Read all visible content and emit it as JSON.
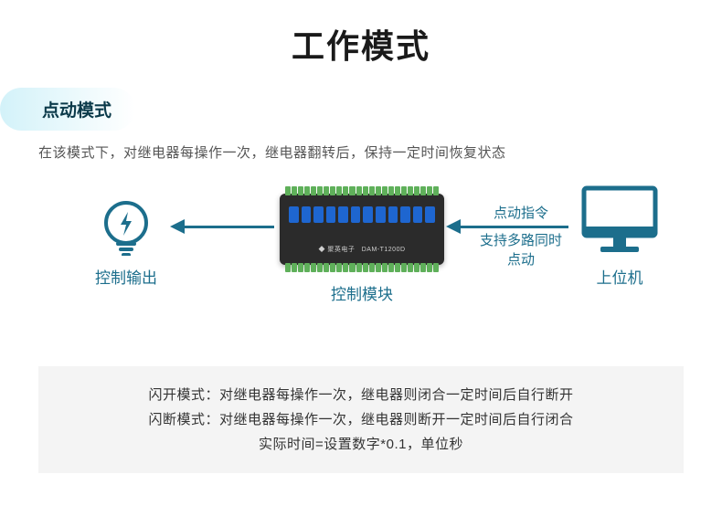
{
  "colors": {
    "accent": "#1c6e8c",
    "text_main": "#222222",
    "text_desc": "#555555",
    "tag_text": "#0b3a4a",
    "tag_bg_start": "#d3f2f9",
    "tag_bg_end": "#ffffff",
    "footer_bg": "#f4f4f4",
    "footer_text": "#333333",
    "device_body": "#2b2b2b",
    "terminal_green": "#5fb05a",
    "relay_blue": "#1e66d0",
    "monitor_stroke": "#1c6e8c"
  },
  "title": "工作模式",
  "mode_tag": "点动模式",
  "description": "在该模式下，对继电器每操作一次，继电器翻转后，保持一定时间恢复状态",
  "diagram": {
    "nodes": {
      "output": {
        "label": "控制输出",
        "icon": "power-bulb"
      },
      "module": {
        "label": "控制模块",
        "icon": "device"
      },
      "host": {
        "label": "上位机",
        "icon": "monitor"
      }
    },
    "arrow2_labels": {
      "line1": "点动指令",
      "line2": "支持多路同时点动"
    }
  },
  "footer": {
    "line1": "闪开模式：对继电器每操作一次，继电器则闭合一定时间后自行断开",
    "line2": "闪断模式：对继电器每操作一次，继电器则断开一定时间后自行闭合",
    "line3": "实际时间=设置数字*0.1，单位秒"
  },
  "styling": {
    "title_fontsize": 36,
    "tag_fontsize": 19,
    "desc_fontsize": 15,
    "label_fontsize": 17,
    "footer_fontsize": 15,
    "arrow_thickness": 3,
    "terminal_count": 24,
    "relay_count": 12
  }
}
